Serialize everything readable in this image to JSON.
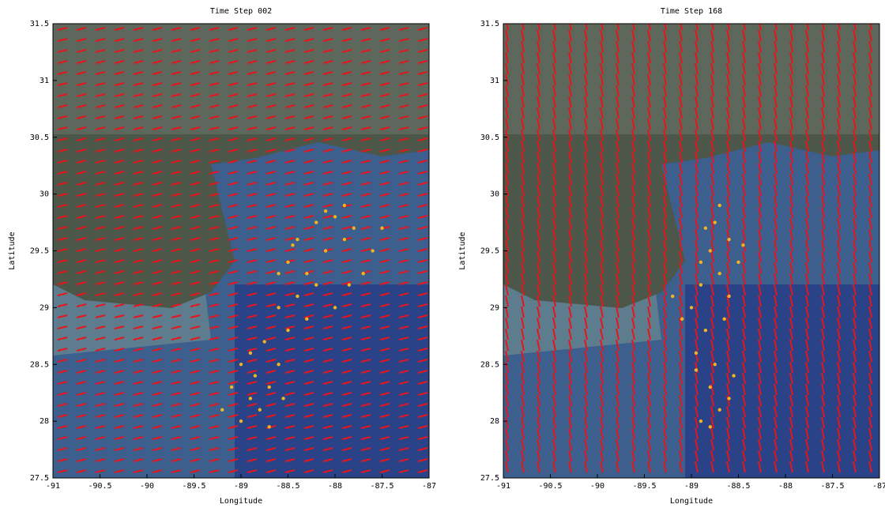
{
  "chart_data": [
    {
      "type": "scatter",
      "title": "Time Step 002",
      "x_label": "Longitude",
      "y_label": "Latitude",
      "xlim": [
        -91,
        -87
      ],
      "ylim": [
        27.5,
        31.5
      ],
      "xticks": [
        -91,
        -90.5,
        -90,
        -89.5,
        -89,
        -88.5,
        -88,
        -87.5,
        -87
      ],
      "yticks": [
        27.5,
        28,
        28.5,
        29,
        29.5,
        30,
        30.5,
        31,
        31.5
      ],
      "series": [
        {
          "color": "#f5b41e",
          "x": [
            -89.0,
            -88.9,
            -88.8,
            -88.7,
            -88.85,
            -89.1,
            -88.6,
            -88.75,
            -88.5,
            -88.6,
            -88.4,
            -88.3,
            -88.2,
            -88.5,
            -88.1,
            -87.9,
            -88.0,
            -87.8,
            -87.6,
            -87.7,
            -88.4,
            -88.2,
            -87.9,
            -87.5,
            -88.6,
            -88.0,
            -88.9,
            -89.0,
            -88.7,
            -88.55,
            -89.2,
            -88.3,
            -87.85,
            -88.45,
            -88.1
          ],
          "values": [
            28.0,
            28.2,
            28.1,
            27.95,
            28.4,
            28.3,
            28.5,
            28.7,
            28.8,
            29.0,
            29.1,
            29.3,
            29.2,
            29.4,
            29.5,
            29.6,
            29.8,
            29.7,
            29.5,
            29.3,
            29.6,
            29.75,
            29.9,
            29.7,
            29.3,
            29.0,
            28.6,
            28.5,
            28.3,
            28.2,
            28.1,
            28.9,
            29.2,
            29.55,
            29.85
          ]
        }
      ]
    },
    {
      "type": "scatter",
      "title": "Time Step 168",
      "x_label": "Longitude",
      "y_label": "Latitude",
      "xlim": [
        -91,
        -87
      ],
      "ylim": [
        27.5,
        31.5
      ],
      "xticks": [
        -91,
        -90.5,
        -90,
        -89.5,
        -89,
        -88.5,
        -88,
        -87.5,
        -87
      ],
      "yticks": [
        27.5,
        28,
        28.5,
        29,
        29.5,
        30,
        30.5,
        31,
        31.5
      ],
      "series": [
        {
          "color": "#f5b41e",
          "x": [
            -88.9,
            -88.7,
            -88.8,
            -88.6,
            -88.75,
            -88.95,
            -88.85,
            -89.0,
            -89.2,
            -88.9,
            -88.7,
            -88.8,
            -88.6,
            -88.85,
            -88.7,
            -88.9,
            -89.1,
            -88.65,
            -88.5,
            -88.55,
            -88.8,
            -88.95,
            -88.6,
            -88.75,
            -88.45
          ],
          "values": [
            28.0,
            28.1,
            28.3,
            28.2,
            28.5,
            28.6,
            28.8,
            29.0,
            29.1,
            29.2,
            29.3,
            29.5,
            29.6,
            29.7,
            29.9,
            29.4,
            28.9,
            28.9,
            29.4,
            28.4,
            27.95,
            28.45,
            29.1,
            29.75,
            29.55
          ]
        }
      ]
    }
  ]
}
